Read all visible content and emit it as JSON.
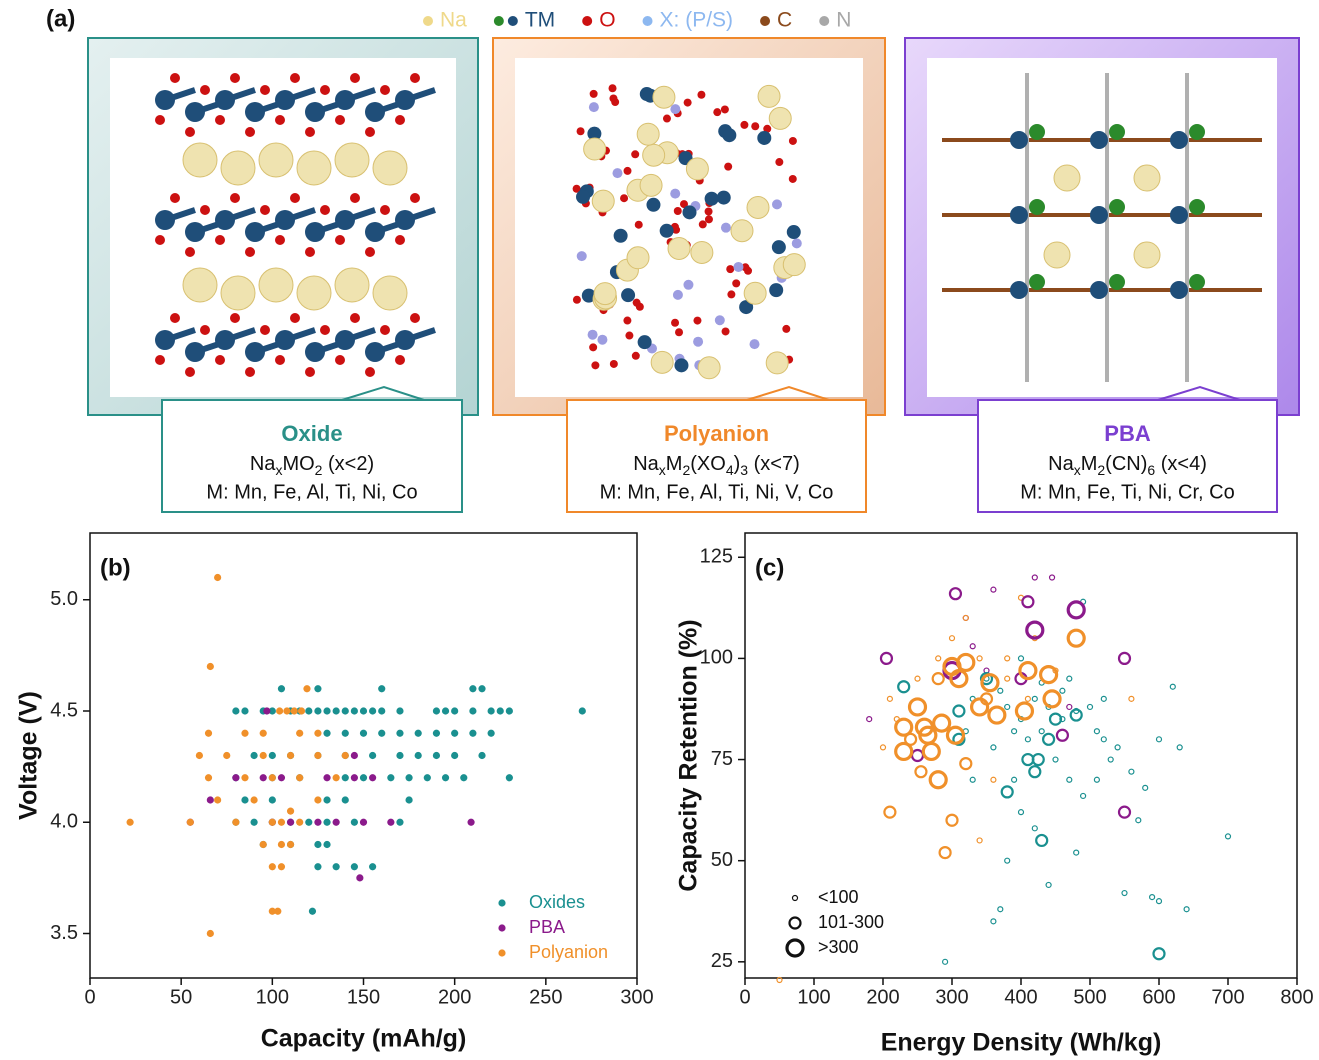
{
  "figure_a": {
    "label": "(a)",
    "legend": [
      {
        "name": "Na",
        "colors": [
          "#efd98a"
        ]
      },
      {
        "name": "TM",
        "colors": [
          "#2b8a2b",
          "#1f4e79"
        ]
      },
      {
        "name": "O",
        "colors": [
          "#cc1111"
        ]
      },
      {
        "name": "X: (P/S)",
        "colors": [
          "#8db8f0"
        ]
      },
      {
        "name": "C",
        "colors": [
          "#8b4a1c"
        ]
      },
      {
        "name": "N",
        "colors": [
          "#a8a8a8"
        ]
      }
    ],
    "cards": [
      {
        "title": "Oxide",
        "color": "#2a9088",
        "formula": [
          "Na",
          "x",
          "MO",
          "2",
          " (x<2)"
        ],
        "metals": "M: Mn, Fe, Al, Ti, Ni, Co"
      },
      {
        "title": "Polyanion",
        "color": "#f0882a",
        "formula": [
          "Na",
          "x",
          "M",
          "2",
          "(XO",
          "4",
          ")",
          "3",
          " (x<7)"
        ],
        "metals": "M: Mn, Fe, Al, Ti, Ni, V, Co"
      },
      {
        "title": "PBA",
        "color": "#7b3fd0",
        "formula": [
          "Na",
          "x",
          "M",
          "2",
          "(CN)",
          "6",
          " (x<4)"
        ],
        "metals": "M: Mn, Fe, Ti, Ni, Cr, Co"
      }
    ]
  },
  "chart_data": [
    {
      "type": "scatter",
      "label": "(b)",
      "x_label": "Capacity (mAh/g)",
      "y_label": "Voltage (V)",
      "xlim": [
        0,
        300
      ],
      "xticks": [
        0,
        50,
        100,
        150,
        200,
        250,
        300
      ],
      "ylim": [
        3.3,
        5.3
      ],
      "yticks": [
        3.5,
        {
          "value": 4,
          "label": "4.0"
        },
        4.5,
        {
          "value": 5,
          "label": "5.0"
        }
      ],
      "grid": false,
      "legend": "lower right",
      "series": [
        {
          "name": "Oxides",
          "color": "#1a9090",
          "x": [
            80,
            85,
            95,
            100,
            110,
            115,
            120,
            125,
            130,
            135,
            140,
            145,
            150,
            155,
            160,
            170,
            190,
            195,
            200,
            210,
            220,
            225,
            230,
            270,
            105,
            125,
            160,
            210,
            215,
            130,
            140,
            150,
            160,
            170,
            180,
            190,
            200,
            210,
            220,
            90,
            100,
            110,
            125,
            140,
            155,
            170,
            180,
            190,
            200,
            215,
            80,
            100,
            115,
            140,
            150,
            165,
            175,
            185,
            195,
            205,
            230,
            85,
            100,
            130,
            140,
            175,
            80,
            90,
            100,
            110,
            120,
            130,
            145,
            170,
            95,
            110,
            125,
            130,
            125,
            135,
            145,
            155,
            122
          ],
          "y": [
            4.5,
            4.5,
            4.5,
            4.5,
            4.5,
            4.5,
            4.5,
            4.5,
            4.5,
            4.5,
            4.5,
            4.5,
            4.5,
            4.5,
            4.5,
            4.5,
            4.5,
            4.5,
            4.5,
            4.5,
            4.5,
            4.5,
            4.5,
            4.5,
            4.6,
            4.6,
            4.6,
            4.6,
            4.6,
            4.4,
            4.4,
            4.4,
            4.4,
            4.4,
            4.4,
            4.4,
            4.4,
            4.4,
            4.4,
            4.3,
            4.3,
            4.3,
            4.3,
            4.3,
            4.3,
            4.3,
            4.3,
            4.3,
            4.3,
            4.3,
            4.2,
            4.2,
            4.2,
            4.2,
            4.2,
            4.2,
            4.2,
            4.2,
            4.2,
            4.2,
            4.2,
            4.1,
            4.1,
            4.1,
            4.1,
            4.1,
            4.0,
            4.0,
            4.0,
            4.0,
            4.0,
            4.0,
            4.0,
            4.0,
            3.9,
            3.9,
            3.9,
            3.9,
            3.8,
            3.8,
            3.8,
            3.8,
            3.6
          ]
        },
        {
          "name": "PBA",
          "color": "#8b1a8b",
          "x": [
            97,
            80,
            95,
            105,
            130,
            145,
            155,
            55,
            100,
            110,
            125,
            135,
            150,
            165,
            209,
            66,
            148,
            145
          ],
          "y": [
            4.5,
            4.2,
            4.2,
            4.2,
            4.2,
            4.2,
            4.2,
            4.0,
            4.0,
            4.0,
            4.0,
            4.0,
            4.0,
            4.0,
            4.0,
            4.1,
            3.75,
            4.3
          ]
        },
        {
          "name": "Polyanion",
          "color": "#f0902a",
          "x": [
            70,
            66,
            119,
            104,
            108,
            112,
            116,
            65,
            85,
            95,
            115,
            125,
            60,
            75,
            95,
            110,
            125,
            140,
            65,
            85,
            100,
            115,
            135,
            70,
            90,
            125,
            110,
            22,
            55,
            80,
            100,
            105,
            115,
            95,
            105,
            110,
            100,
            105,
            100,
            103,
            66
          ],
          "y": [
            5.1,
            4.7,
            4.6,
            4.5,
            4.5,
            4.5,
            4.5,
            4.4,
            4.4,
            4.4,
            4.4,
            4.4,
            4.3,
            4.3,
            4.3,
            4.3,
            4.3,
            4.3,
            4.2,
            4.2,
            4.2,
            4.2,
            4.2,
            4.1,
            4.1,
            4.1,
            4.05,
            4.0,
            4.0,
            4.0,
            4.0,
            4.0,
            4.0,
            3.9,
            3.9,
            3.9,
            3.8,
            3.8,
            3.6,
            3.6,
            3.5
          ]
        }
      ]
    },
    {
      "type": "bubble-groups",
      "label": "(c)",
      "x_label": "Energy Density (Wh/kg)",
      "y_label": "Capacity Retention (%)",
      "xlim": [
        0,
        800
      ],
      "xticks": [
        0,
        100,
        200,
        300,
        400,
        500,
        600,
        700,
        800
      ],
      "ylim": [
        21,
        131
      ],
      "yticks": [
        25,
        50,
        75,
        100,
        125
      ],
      "grid": false,
      "legend": "lower left",
      "size_groups": [
        {
          "label": "<100",
          "series": [
            {
              "color": "#1a9090",
              "x": [
                330,
                350,
                370,
                380,
                400,
                420,
                440,
                460,
                480,
                500,
                520,
                540,
                560,
                580,
                600,
                620,
                630,
                700,
                600,
                640,
                590,
                550,
                480,
                440,
                420,
                400,
                380,
                370,
                360,
                290,
                390,
                410,
                450,
                470,
                490,
                510,
                530,
                570,
                400,
                430,
                460,
                490,
                360,
                320,
                330,
                510,
                520,
                470,
                430,
                390
              ],
              "y": [
                90,
                95,
                92,
                88,
                85,
                90,
                88,
                85,
                87,
                88,
                80,
                78,
                72,
                68,
                80,
                93,
                78,
                56,
                40,
                38,
                41,
                42,
                52,
                44,
                58,
                62,
                50,
                38,
                35,
                25,
                82,
                80,
                75,
                70,
                66,
                70,
                75,
                60,
                100,
                94,
                92,
                114,
                78,
                82,
                70,
                82,
                90,
                95,
                82,
                70
              ]
            },
            {
              "color": "#8b1a8b",
              "x": [
                180,
                320,
                350,
                360,
                420,
                445,
                470,
                330
              ],
              "y": [
                85,
                110,
                97,
                117,
                120,
                120,
                88,
                103
              ]
            },
            {
              "color": "#f0902a",
              "x": [
                200,
                210,
                220,
                250,
                280,
                300,
                320,
                340,
                380,
                400,
                420,
                340,
                360,
                380,
                410,
                450,
                560,
                50
              ],
              "y": [
                78,
                90,
                85,
                95,
                100,
                105,
                110,
                100,
                95,
                115,
                105,
                55,
                70,
                100,
                90,
                97,
                90,
                20.5
              ]
            }
          ]
        },
        {
          "label": "101-300",
          "series": [
            {
              "color": "#1a9090",
              "x": [
                230,
                310,
                350,
                410,
                420,
                425,
                440,
                450,
                480,
                430,
                600,
                380,
                310
              ],
              "y": [
                93,
                87,
                95,
                75,
                72,
                75,
                80,
                85,
                86,
                55,
                27,
                67,
                80
              ]
            },
            {
              "color": "#8b1a8b",
              "x": [
                205,
                305,
                410,
                250,
                550,
                550,
                400,
                460
              ],
              "y": [
                100,
                116,
                114,
                76,
                100,
                62,
                95,
                81
              ]
            },
            {
              "color": "#f0902a",
              "x": [
                210,
                240,
                255,
                300,
                290,
                280,
                350,
                320
              ],
              "y": [
                62,
                80,
                72,
                60,
                52,
                95,
                90,
                74
              ]
            }
          ]
        },
        {
          "label": ">300",
          "series": [
            {
              "color": "#8b1a8b",
              "x": [
                300,
                420,
                480
              ],
              "y": [
                97,
                107,
                112
              ]
            },
            {
              "color": "#f0902a",
              "x": [
                230,
                230,
                260,
                265,
                285,
                305,
                270,
                300,
                320,
                340,
                355,
                365,
                410,
                405,
                440,
                445,
                480,
                280,
                250,
                310
              ],
              "y": [
                83,
                77,
                83,
                81,
                84,
                81,
                77,
                98,
                99,
                88,
                94,
                86,
                97,
                87,
                96,
                90,
                105,
                70,
                88,
                95
              ]
            }
          ]
        }
      ]
    }
  ]
}
